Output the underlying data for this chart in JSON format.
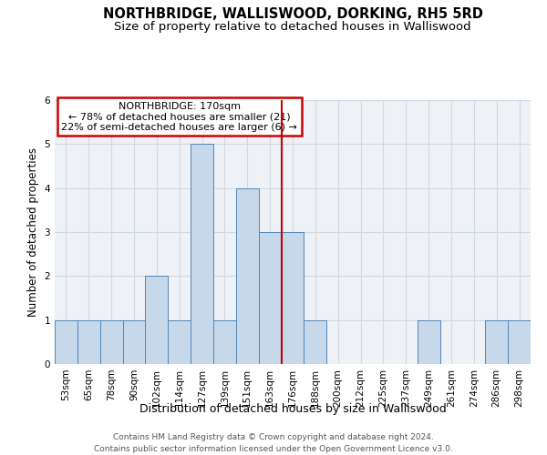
{
  "title": "NORTHBRIDGE, WALLISWOOD, DORKING, RH5 5RD",
  "subtitle": "Size of property relative to detached houses in Walliswood",
  "xlabel": "Distribution of detached houses by size in Walliswood",
  "ylabel": "Number of detached properties",
  "categories": [
    "53sqm",
    "65sqm",
    "78sqm",
    "90sqm",
    "102sqm",
    "114sqm",
    "127sqm",
    "139sqm",
    "151sqm",
    "163sqm",
    "176sqm",
    "188sqm",
    "200sqm",
    "212sqm",
    "225sqm",
    "237sqm",
    "249sqm",
    "261sqm",
    "274sqm",
    "286sqm",
    "298sqm"
  ],
  "values": [
    1,
    1,
    1,
    1,
    2,
    1,
    5,
    1,
    4,
    3,
    3,
    1,
    0,
    0,
    0,
    0,
    1,
    0,
    0,
    1,
    1
  ],
  "bar_color": "#c8d8eb",
  "bar_edge_color": "#4f86b8",
  "grid_color": "#d0d8e0",
  "vline_index": 10,
  "vline_color": "#cc0000",
  "annotation_text": "NORTHBRIDGE: 170sqm\n← 78% of detached houses are smaller (21)\n22% of semi-detached houses are larger (6) →",
  "annotation_box_color": "#cc0000",
  "annotation_bg": "#ffffff",
  "ylim": [
    0,
    6
  ],
  "yticks": [
    0,
    1,
    2,
    3,
    4,
    5,
    6
  ],
  "footer": "Contains HM Land Registry data © Crown copyright and database right 2024.\nContains public sector information licensed under the Open Government Licence v3.0.",
  "bg_color": "#eef2f7",
  "title_fontsize": 10.5,
  "subtitle_fontsize": 9.5,
  "xlabel_fontsize": 9,
  "ylabel_fontsize": 8.5,
  "tick_fontsize": 7.5,
  "annotation_fontsize": 8,
  "footer_fontsize": 6.5
}
